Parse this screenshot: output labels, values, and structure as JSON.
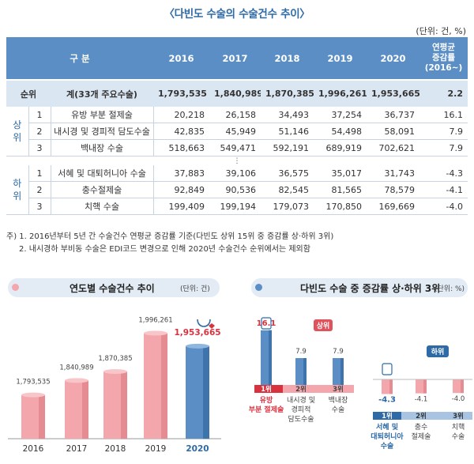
{
  "title": "〈다빈도 수술의 수술건수 추이〉",
  "unit_top": "(단위: 건, %)",
  "table": {
    "header": {
      "label": "구 분",
      "years": [
        "2016",
        "2017",
        "2018",
        "2019",
        "2020"
      ],
      "rate": [
        "연평균",
        "증감률",
        "(2016~)"
      ]
    },
    "total": {
      "rank_label": "순위",
      "name": "계(33개 주요수술)",
      "values": [
        "1,793,535",
        "1,840,989",
        "1,870,385",
        "1,996,261",
        "1,953,665"
      ],
      "rate": "2.2"
    },
    "upper_label": "상위",
    "upper": [
      {
        "rank": "1",
        "name": "유방 부분 절제술",
        "values": [
          "20,218",
          "26,158",
          "34,493",
          "37,254",
          "36,737"
        ],
        "rate": "16.1"
      },
      {
        "rank": "2",
        "name": "내시경 및 경피적 담도수술",
        "values": [
          "42,835",
          "45,949",
          "51,146",
          "54,498",
          "58,091"
        ],
        "rate": "7.9"
      },
      {
        "rank": "3",
        "name": "백내장 수술",
        "values": [
          "518,663",
          "549,471",
          "592,191",
          "689,919",
          "702,621"
        ],
        "rate": "7.9"
      }
    ],
    "ellipsis": "⋮",
    "lower_label": "하위",
    "lower": [
      {
        "rank": "1",
        "name": "서혜 및 대퇴허니아 수술",
        "values": [
          "37,883",
          "39,106",
          "36,575",
          "35,017",
          "31,743"
        ],
        "rate": "-4.3"
      },
      {
        "rank": "2",
        "name": "충수절제술",
        "values": [
          "92,849",
          "90,536",
          "82,545",
          "81,565",
          "78,579"
        ],
        "rate": "-4.1"
      },
      {
        "rank": "3",
        "name": "치핵 수술",
        "values": [
          "199,409",
          "199,194",
          "179,073",
          "170,850",
          "169,669"
        ],
        "rate": "-4.0"
      }
    ]
  },
  "notes": [
    "주) 1. 2016년부터 5년 간 수술건수 연평균 증감률 기준(다빈도 상위 15위 중 증감률 상·하위 3위)",
    "2. 내시경하 부비동 수술은 EDI코드 변경으로 인해 2020년 수술건수 순위에서는 제외함"
  ],
  "colors": {
    "blue": "#5a8ec4",
    "pink": "#f3a6ab",
    "red": "#d9323f",
    "navy": "#2e6aa6",
    "lightblue": "#dbe6f3"
  },
  "chart_data": [
    {
      "type": "bar",
      "title": "연도별 수술건수 추이",
      "unit": "(단위: 건)",
      "categories": [
        "2016",
        "2017",
        "2018",
        "2019",
        "2020"
      ],
      "values": [
        1793535,
        1840989,
        1870385,
        1996261,
        1953665
      ],
      "value_labels": [
        "1,793,535",
        "1,840,989",
        "1,870,385",
        "1,996,261",
        "1,953,665"
      ],
      "highlight": "2020",
      "icon": "stethoscope-heart-icon"
    },
    {
      "type": "bar",
      "title": "다빈도 수술 중 증감률 상·하위 3위",
      "unit": "(단위: %)",
      "groups": [
        {
          "badge": "상위",
          "ranks": [
            "1위",
            "2위",
            "3위"
          ],
          "names": [
            "유방\n부분 절제술",
            "내시경 및\n경피적\n담도수술",
            "백내장\n수술"
          ],
          "values": [
            16.1,
            7.9,
            7.9
          ],
          "value_labels": [
            "16.1",
            "7.9",
            "7.9"
          ],
          "icon": "breast-scan-icon"
        },
        {
          "badge": "하위",
          "ranks": [
            "1위",
            "2위",
            "3위"
          ],
          "names": [
            "서혜 및\n대퇴허니아\n수술",
            "충수\n절제술",
            "치핵\n수술"
          ],
          "values": [
            -4.3,
            -4.1,
            -4.0
          ],
          "value_labels": [
            "-4.3",
            "-4.1",
            "-4.0"
          ],
          "icon": "body-scan-icon"
        }
      ]
    }
  ]
}
